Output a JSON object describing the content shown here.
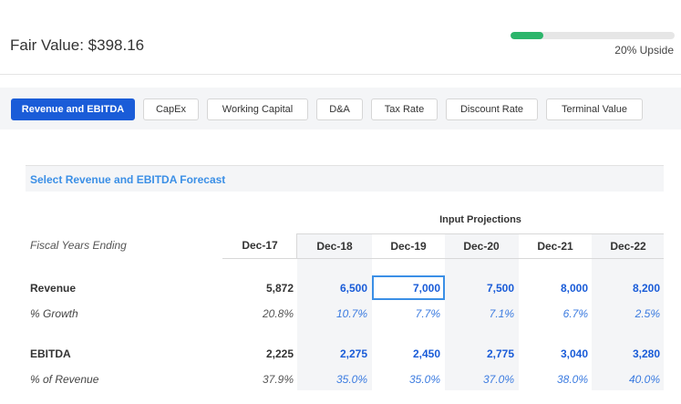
{
  "header": {
    "fair_value_label": "Fair Value: $398.16",
    "upside_label": "20% Upside",
    "upside_fraction": 0.2,
    "progress_color": "#2cb56b"
  },
  "tabs": [
    {
      "label": "Revenue and EBITDA",
      "active": true
    },
    {
      "label": "CapEx",
      "active": false
    },
    {
      "label": "Working Capital",
      "active": false
    },
    {
      "label": "D&A",
      "active": false
    },
    {
      "label": "Tax Rate",
      "active": false
    },
    {
      "label": "Discount Rate",
      "active": false
    },
    {
      "label": "Terminal Value",
      "active": false
    }
  ],
  "section_title": "Select Revenue and EBITDA Forecast",
  "table": {
    "group_header": "Input Projections",
    "row_header": "Fiscal Years Ending",
    "columns": [
      "Dec-17",
      "Dec-18",
      "Dec-19",
      "Dec-20",
      "Dec-21",
      "Dec-22"
    ],
    "rows": [
      {
        "label": "Revenue",
        "values": [
          "5,872",
          "6,500",
          "7,000",
          "7,500",
          "8,000",
          "8,200"
        ]
      },
      {
        "label": "% Growth",
        "values": [
          "20.8%",
          "10.7%",
          "7.7%",
          "7.1%",
          "6.7%",
          "2.5%"
        ]
      },
      {
        "label": "EBITDA",
        "values": [
          "2,225",
          "2,275",
          "2,450",
          "2,775",
          "3,040",
          "3,280"
        ]
      },
      {
        "label": "% of Revenue",
        "values": [
          "37.9%",
          "35.0%",
          "35.0%",
          "37.0%",
          "38.0%",
          "40.0%"
        ]
      }
    ]
  },
  "colors": {
    "accent": "#1a5cd8",
    "section_title": "#3b8fe6",
    "panel_bg": "#f4f5f7"
  }
}
